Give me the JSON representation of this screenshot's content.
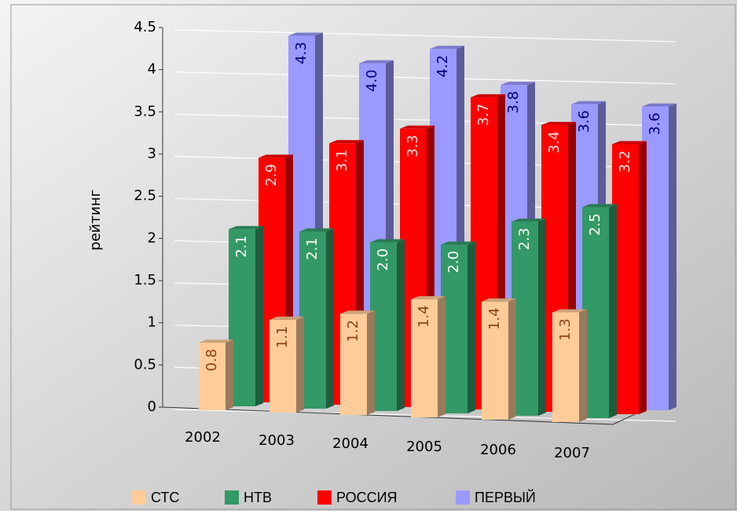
{
  "chart_data": {
    "type": "bar3d",
    "ylabel": "рейтинг",
    "categories": [
      "2002",
      "2003",
      "2004",
      "2005",
      "2006",
      "2007"
    ],
    "ylim": [
      0,
      4.5
    ],
    "yticks": [
      0,
      0.5,
      1,
      1.5,
      2,
      2.5,
      3,
      3.5,
      4,
      4.5
    ],
    "grid": true,
    "legend": "bottom",
    "series": [
      {
        "name": "СТС",
        "color": "#ffcc99",
        "label_color": "#8b4513",
        "values": [
          0.8,
          1.1,
          1.2,
          1.4,
          1.4,
          1.3
        ],
        "value_labels": [
          "0.8",
          "1.1",
          "1.2",
          "1.4",
          "1.4",
          "1.3"
        ]
      },
      {
        "name": "НТВ",
        "color": "#339966",
        "label_color": "#ffffff",
        "values": [
          2.1,
          2.1,
          2.0,
          2.0,
          2.3,
          2.5
        ],
        "value_labels": [
          "2.1",
          "2.1",
          "2.0",
          "2.0",
          "2.3",
          "2.5"
        ]
      },
      {
        "name": "РОССИЯ",
        "color": "#ff0000",
        "label_color": "#ffdddd",
        "values": [
          2.9,
          3.1,
          3.3,
          3.7,
          3.4,
          3.2
        ],
        "value_labels": [
          "2.9",
          "3.1",
          "3.3",
          "3.7",
          "3.4",
          "3.2"
        ]
      },
      {
        "name": "ПЕРВЫЙ",
        "color": "#9999ff",
        "label_color": "#000080",
        "values": [
          4.3,
          4.0,
          4.2,
          3.8,
          3.6,
          3.6
        ],
        "value_labels": [
          "4.3",
          "4.0",
          "4.2",
          "3.8",
          "3.6",
          "3.6"
        ]
      }
    ]
  }
}
